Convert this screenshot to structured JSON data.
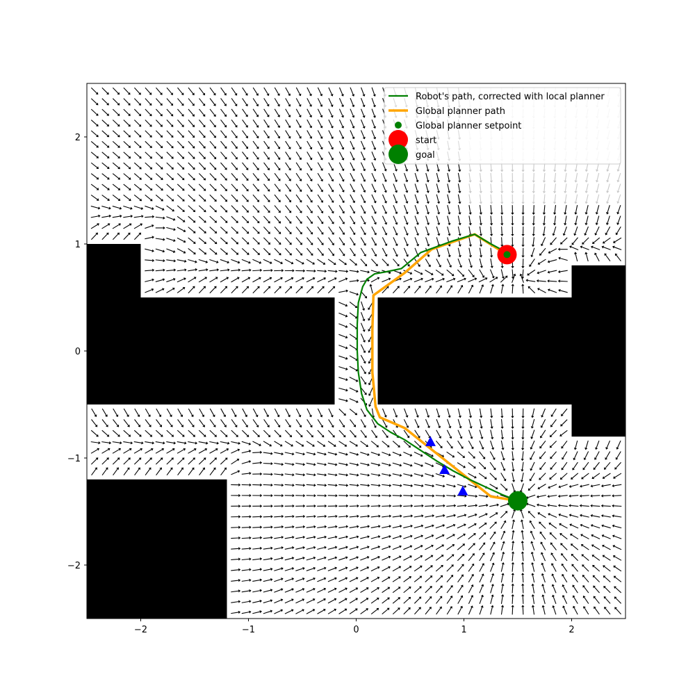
{
  "chart_data": {
    "type": "scatter",
    "title": "",
    "xlabel": "",
    "ylabel": "",
    "xlim": [
      -2.5,
      2.5
    ],
    "ylim": [
      -2.5,
      2.5
    ],
    "grid": false,
    "legend_position": "top-right",
    "x_ticks": [
      {
        "value": -2,
        "label": "−2"
      },
      {
        "value": -1,
        "label": "−1"
      },
      {
        "value": 0,
        "label": "0"
      },
      {
        "value": 1,
        "label": "1"
      },
      {
        "value": 2,
        "label": "2"
      }
    ],
    "y_ticks": [
      {
        "value": -2,
        "label": "−2"
      },
      {
        "value": -1,
        "label": "−1"
      },
      {
        "value": 0,
        "label": "0"
      },
      {
        "value": 1,
        "label": "1"
      },
      {
        "value": 2,
        "label": "2"
      }
    ],
    "obstacles": [
      {
        "x": [
          -2.5,
          -2.0
        ],
        "y": [
          0.5,
          1.0
        ]
      },
      {
        "x": [
          -2.5,
          -0.2
        ],
        "y": [
          -0.5,
          0.5
        ]
      },
      {
        "x": [
          0.2,
          2.0
        ],
        "y": [
          -0.5,
          0.5
        ]
      },
      {
        "x": [
          2.0,
          2.5
        ],
        "y": [
          -0.8,
          0.8
        ]
      },
      {
        "x": [
          -2.5,
          -1.2
        ],
        "y": [
          -2.5,
          -1.2
        ]
      }
    ],
    "series": [
      {
        "name": "Robot's path, corrected with local planner",
        "type": "line",
        "color": "#008000",
        "x": [
          1.4,
          1.25,
          1.1,
          0.9,
          0.6,
          0.42,
          0.28,
          0.17,
          0.1,
          0.06,
          0.02,
          0.01,
          0.01,
          0.02,
          0.05,
          0.1,
          0.2,
          0.32,
          0.45,
          0.6,
          0.75,
          0.9,
          1.05,
          1.2,
          1.35,
          1.5
        ],
        "y": [
          0.92,
          1.0,
          1.09,
          1.03,
          0.92,
          0.77,
          0.74,
          0.72,
          0.67,
          0.6,
          0.45,
          0.25,
          0.0,
          -0.2,
          -0.4,
          -0.55,
          -0.68,
          -0.76,
          -0.83,
          -0.93,
          -1.03,
          -1.12,
          -1.2,
          -1.27,
          -1.34,
          -1.4
        ]
      },
      {
        "name": "Global planner path",
        "type": "line",
        "color": "#ffa500",
        "x": [
          1.4,
          1.1,
          0.7,
          0.45,
          0.16,
          0.15,
          0.15,
          0.18,
          0.22,
          0.45,
          0.7,
          1.0,
          1.25,
          1.5
        ],
        "y": [
          0.9,
          1.09,
          0.95,
          0.73,
          0.52,
          0.2,
          -0.2,
          -0.52,
          -0.62,
          -0.72,
          -0.92,
          -1.16,
          -1.36,
          -1.4
        ]
      },
      {
        "name": "Global planner setpoint",
        "type": "scatter",
        "color": "#008000",
        "x": [
          1.4
        ],
        "y": [
          0.9
        ]
      },
      {
        "name": "start",
        "type": "scatter",
        "color": "#ff0000",
        "x": [
          1.4
        ],
        "y": [
          0.9
        ]
      },
      {
        "name": "goal",
        "type": "scatter",
        "color": "#008000",
        "x": [
          1.5
        ],
        "y": [
          -1.4
        ]
      },
      {
        "type": "triangle-markers",
        "color": "#0000ff",
        "x": [
          0.69,
          0.82,
          0.99
        ],
        "y": [
          -0.85,
          -1.11,
          -1.31
        ]
      }
    ],
    "legend": [
      {
        "label": "Robot's path, corrected with local planner",
        "kind": "line",
        "color": "#008000"
      },
      {
        "label": "Global planner path",
        "kind": "line",
        "color": "#ffa500"
      },
      {
        "label": "Global planner setpoint",
        "kind": "dot",
        "color": "#008000"
      },
      {
        "label": "start",
        "kind": "big-dot",
        "color": "#ff0000"
      },
      {
        "label": "goal",
        "kind": "big-dot",
        "color": "#008000"
      }
    ]
  }
}
